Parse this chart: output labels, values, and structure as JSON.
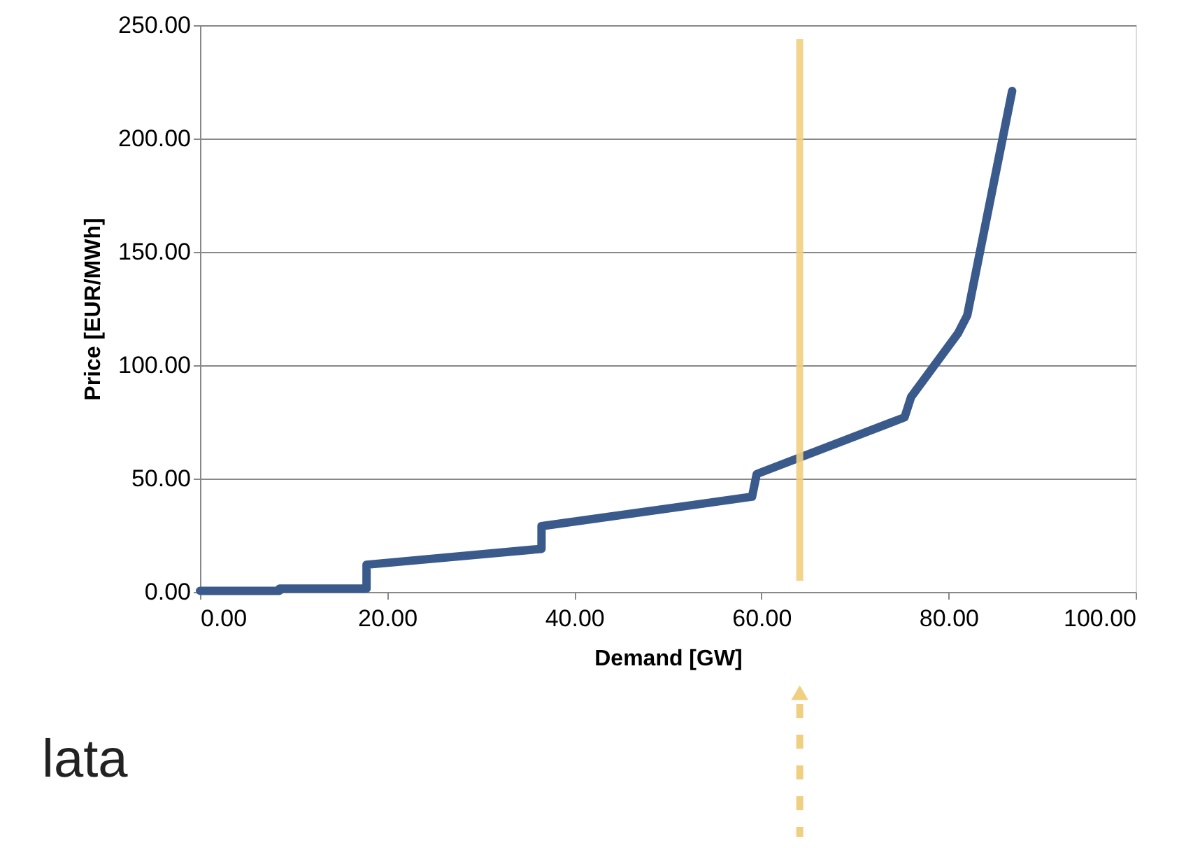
{
  "chart_data": {
    "type": "line",
    "xlabel": "Demand [GW]",
    "ylabel": "Price [EUR/MWh]",
    "x": [
      0,
      8.5,
      8.5,
      17.8,
      17.8,
      36.5,
      36.5,
      59,
      59.5,
      75.3,
      76,
      81,
      82,
      86.8
    ],
    "series": [
      {
        "color": "#3b5a8c",
        "values": [
          0.5,
          0.5,
          1.5,
          1.5,
          12,
          19,
          29,
          42,
          52,
          77,
          86,
          114,
          122,
          221
        ]
      }
    ],
    "xlim": [
      0,
      100
    ],
    "ylim": [
      0,
      250
    ],
    "xticks": [
      {
        "value": 0,
        "label": "0.00"
      },
      {
        "value": 20,
        "label": "20.00"
      },
      {
        "value": 40,
        "label": "40.00"
      },
      {
        "value": 60,
        "label": "60.00"
      },
      {
        "value": 80,
        "label": "80.00"
      },
      {
        "value": 100,
        "label": "100.00"
      }
    ],
    "yticks": [
      {
        "value": 0,
        "label": "0.00"
      },
      {
        "value": 50,
        "label": "50.00"
      },
      {
        "value": 100,
        "label": "100.00"
      },
      {
        "value": 150,
        "label": "150.00"
      },
      {
        "value": 200,
        "label": "200.00"
      },
      {
        "value": 250,
        "label": "250.00"
      }
    ],
    "ref_lines": [
      {
        "axis": "x",
        "value": 64.1,
        "color": "#f0d080"
      }
    ],
    "grid": "y",
    "marker": "none",
    "line_style": "solid",
    "annotations": [
      "lata"
    ]
  }
}
